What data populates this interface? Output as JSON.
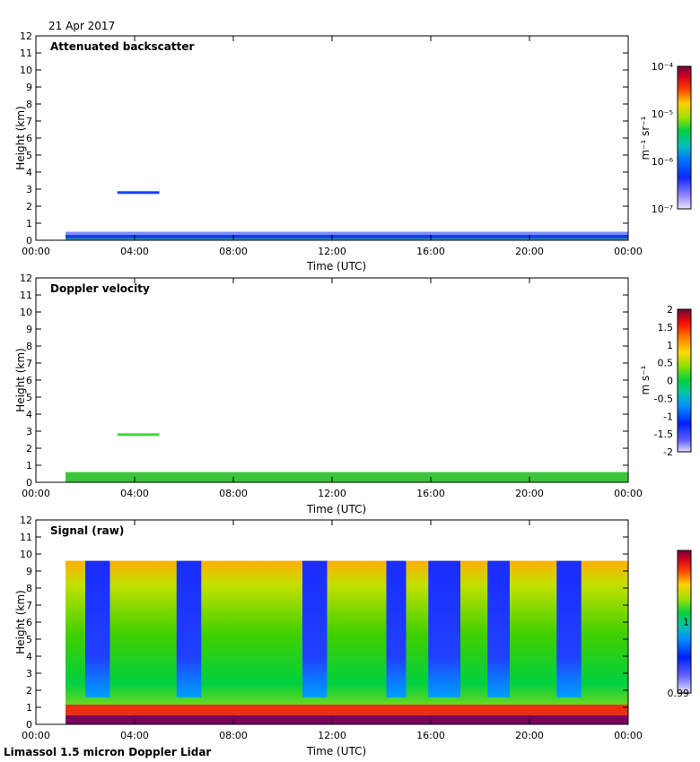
{
  "date_label": "21 Apr 2017",
  "footer_label": "Limassol 1.5 micron Doppler Lidar",
  "colors": {
    "frame": "#000000",
    "background": "#ffffff"
  },
  "chart_data": [
    {
      "type": "heatmap",
      "title": "Attenuated backscatter",
      "xlabel": "Time (UTC)",
      "ylabel": "Height (km)",
      "x_ticks": [
        "00:00",
        "04:00",
        "08:00",
        "12:00",
        "16:00",
        "20:00",
        "00:00"
      ],
      "x_range_hours": [
        0,
        24
      ],
      "y_ticks": [
        0,
        1,
        2,
        3,
        4,
        5,
        6,
        7,
        8,
        9,
        10,
        11,
        12
      ],
      "ylim": [
        0,
        12
      ],
      "colorbar": {
        "label": "m⁻¹ sr⁻¹",
        "scale": "log",
        "range": [
          1e-07,
          0.0001
        ],
        "tick_labels": [
          "10⁻⁴",
          "10⁻⁵",
          "10⁻⁶",
          "10⁻⁷"
        ]
      },
      "features": {
        "data_start_hour": 1.2,
        "boundary_layer_top_km": 0.5,
        "cloud_layer": {
          "start_hour": 3.3,
          "end_hour": 5.0,
          "height_km": 2.8
        }
      }
    },
    {
      "type": "heatmap",
      "title": "Doppler velocity",
      "xlabel": "Time (UTC)",
      "ylabel": "Height (km)",
      "x_ticks": [
        "00:00",
        "04:00",
        "08:00",
        "12:00",
        "16:00",
        "20:00",
        "00:00"
      ],
      "x_range_hours": [
        0,
        24
      ],
      "y_ticks": [
        0,
        1,
        2,
        3,
        4,
        5,
        6,
        7,
        8,
        9,
        10,
        11,
        12
      ],
      "ylim": [
        0,
        12
      ],
      "colorbar": {
        "label": "m s⁻¹",
        "scale": "linear",
        "range": [
          -2,
          2
        ],
        "tick_labels": [
          "2",
          "1.5",
          "1",
          "0.5",
          "0",
          "-0.5",
          "-1",
          "-1.5",
          "-2"
        ]
      },
      "features": {
        "data_start_hour": 1.2,
        "boundary_layer_top_km": 0.6,
        "cloud_layer": {
          "start_hour": 3.3,
          "end_hour": 5.0,
          "height_km": 2.8
        }
      }
    },
    {
      "type": "heatmap",
      "title": "Signal (raw)",
      "xlabel": "Time (UTC)",
      "ylabel": "Height (km)",
      "x_ticks": [
        "00:00",
        "04:00",
        "08:00",
        "12:00",
        "16:00",
        "20:00",
        "00:00"
      ],
      "x_range_hours": [
        0,
        24
      ],
      "y_ticks": [
        0,
        1,
        2,
        3,
        4,
        5,
        6,
        7,
        8,
        9,
        10,
        11,
        12
      ],
      "ylim": [
        0,
        12
      ],
      "colorbar": {
        "label": "",
        "scale": "linear",
        "range": [
          0.99,
          1.01
        ],
        "tick_labels": [
          "1",
          "0.99"
        ]
      },
      "features": {
        "data_start_hour": 1.2,
        "data_top_km": 9.6,
        "low_signal_bands_hours": [
          [
            2.0,
            3.0
          ],
          [
            5.7,
            6.7
          ],
          [
            10.8,
            11.8
          ],
          [
            14.2,
            15.0
          ],
          [
            15.9,
            17.2
          ],
          [
            18.3,
            19.2
          ],
          [
            21.1,
            22.1
          ]
        ]
      }
    }
  ]
}
